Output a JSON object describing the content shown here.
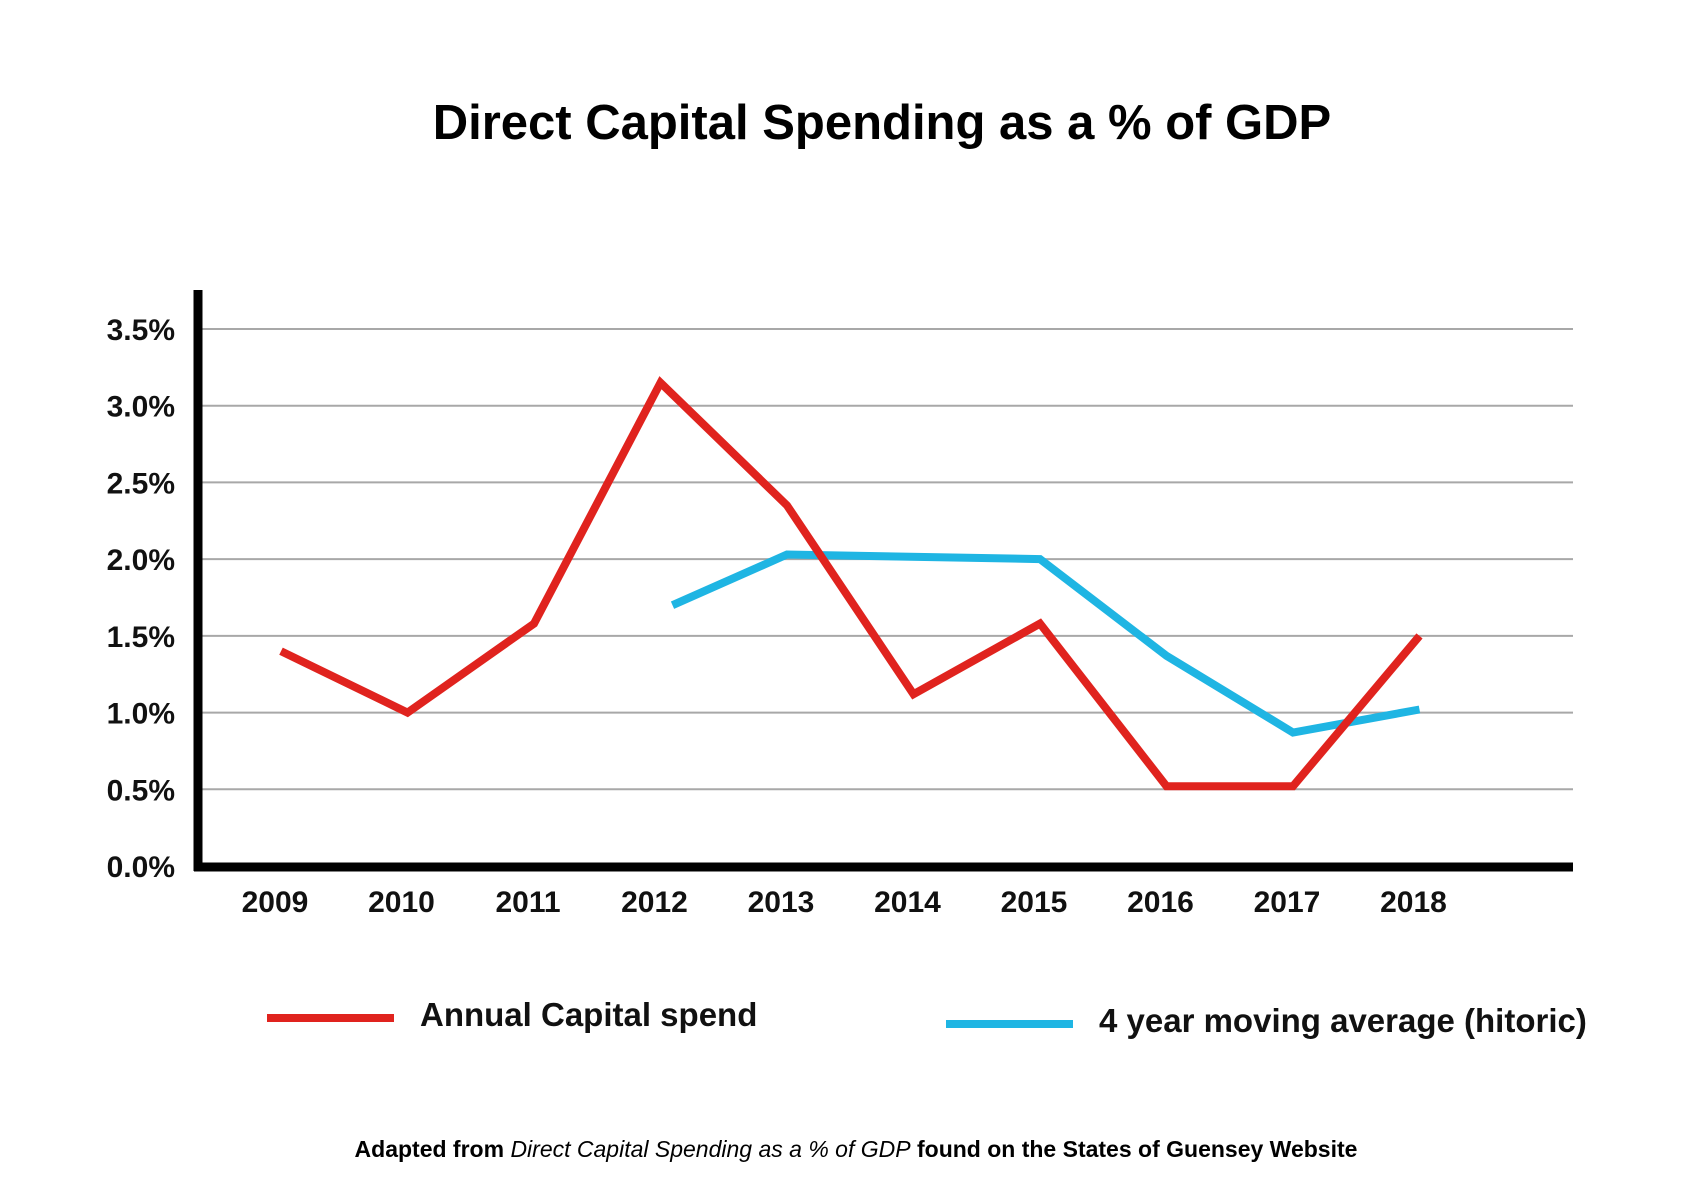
{
  "chart_data": {
    "type": "line",
    "title": "Direct Capital Spending as a % of GDP",
    "xlabel": "",
    "ylabel": "",
    "ylim": [
      0,
      3.5
    ],
    "yticks": [
      "0.0%",
      "0.5%",
      "1.0%",
      "1.5%",
      "2.0%",
      "2.5%",
      "3.0%",
      "3.5%"
    ],
    "ytick_values": [
      0,
      0.5,
      1.0,
      1.5,
      2.0,
      2.5,
      3.0,
      3.5
    ],
    "categories": [
      "2009",
      "2010",
      "2011",
      "2012",
      "2013",
      "2014",
      "2015",
      "2016",
      "2017",
      "2018"
    ],
    "grid": true,
    "legend_position": "bottom",
    "series": [
      {
        "name": "Annual Capital spend",
        "color": "#e0231e",
        "values": [
          1.4,
          1.0,
          1.58,
          3.15,
          2.35,
          1.12,
          1.58,
          0.52,
          0.52,
          1.5
        ]
      },
      {
        "name": "4 year moving average (hitoric)",
        "color": "#1fb5e3",
        "values": [
          null,
          null,
          null,
          1.7,
          2.03,
          null,
          2.0,
          1.37,
          0.87,
          1.02
        ]
      }
    ],
    "footer": {
      "prefix": "Adapted from ",
      "italic": "Direct Capital Spending as a % of GDP",
      "suffix": " found on the States of Guensey Website"
    }
  }
}
